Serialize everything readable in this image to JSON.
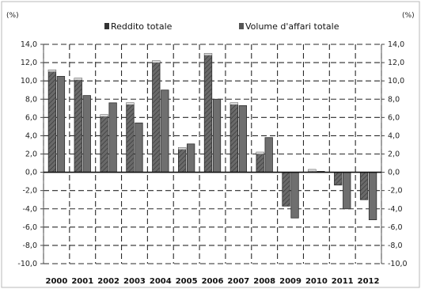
{
  "chart_data": {
    "type": "bar",
    "title": "",
    "xlabel": "",
    "ylabel_left": "(%)",
    "ylabel_right": "(%)",
    "ylim": [
      -10,
      14
    ],
    "ytick_labels": [
      "-10,0",
      "-8,0",
      "-6,0",
      "-4,0",
      "-2,0",
      "0,0",
      "2,0",
      "4,0",
      "6,0",
      "8,0",
      "10,0",
      "12,0",
      "14,0"
    ],
    "yticks": [
      -10,
      -8,
      -6,
      -4,
      -2,
      0,
      2,
      4,
      6,
      8,
      10,
      12,
      14
    ],
    "grid": true,
    "legend_position": "top",
    "categories": [
      "2000",
      "2001",
      "2002",
      "2003",
      "2004",
      "2005",
      "2006",
      "2007",
      "2008",
      "2009",
      "2010",
      "2011",
      "2012"
    ],
    "series": [
      {
        "name": "Reddito totale",
        "color": "#5a5a5a",
        "values": [
          11.2,
          10.3,
          6.3,
          7.6,
          12.2,
          2.7,
          13.0,
          7.6,
          2.2,
          -3.7,
          0.3,
          -1.4,
          -3.0
        ]
      },
      {
        "name": "Volume d'affari totale",
        "color": "#6f6f6f",
        "values": [
          10.5,
          8.4,
          7.6,
          5.4,
          9.0,
          3.1,
          8.0,
          7.3,
          3.8,
          -5.0,
          0.1,
          -4.0,
          -5.2
        ]
      }
    ]
  }
}
